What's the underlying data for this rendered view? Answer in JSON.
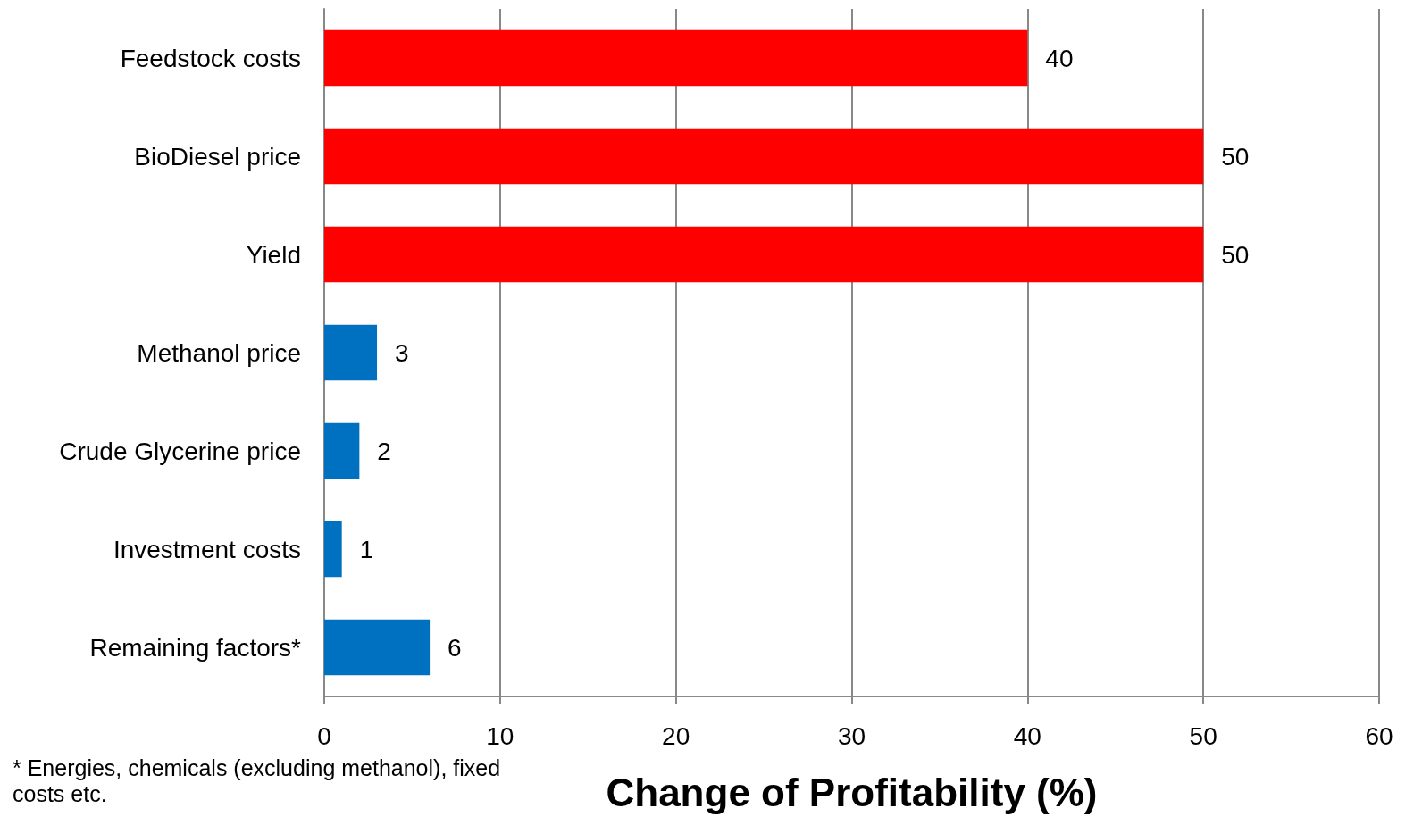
{
  "chart_data": {
    "type": "bar",
    "orientation": "horizontal",
    "xlabel": "Change of Profitability (%)",
    "categories": [
      "Feedstock costs",
      "BioDiesel price",
      "Yield",
      "Methanol price",
      "Crude Glycerine price",
      "Investment costs",
      "Remaining factors*"
    ],
    "values": [
      40,
      50,
      50,
      3,
      2,
      1,
      6
    ],
    "colors": [
      "#ff0000",
      "#ff0000",
      "#ff0000",
      "#0070c0",
      "#0070c0",
      "#0070c0",
      "#0070c0"
    ],
    "xlim": [
      0,
      60
    ],
    "xticks": [
      0,
      10,
      20,
      30,
      40,
      50,
      60
    ],
    "grid": "x",
    "data_labels": true,
    "annotations": [
      "* Energies, chemicals (excluding methanol), fixed costs etc."
    ]
  }
}
